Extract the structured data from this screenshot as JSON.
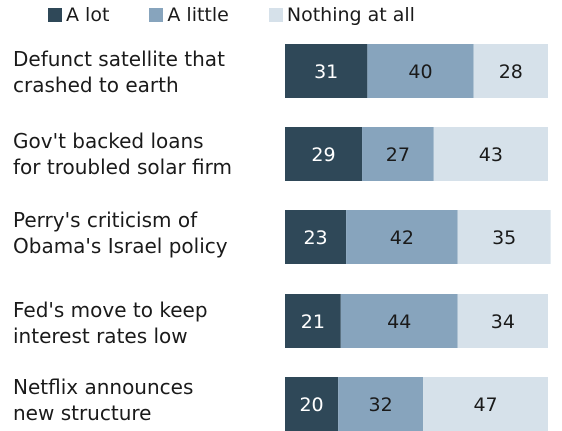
{
  "chart_data": {
    "type": "bar",
    "stacked": true,
    "orientation": "horizontal",
    "categories": [
      [
        "Defunct satellite that",
        "crashed to earth"
      ],
      [
        "Gov't backed loans",
        "for troubled solar firm"
      ],
      [
        "Perry's criticism of",
        "Obama's Israel policy"
      ],
      [
        "Fed's move to keep",
        "interest rates low"
      ],
      [
        "Netflix announces",
        "new structure"
      ]
    ],
    "series": [
      {
        "name": "A lot",
        "color": "#2f4858",
        "label_color": "#ffffff",
        "values": [
          31,
          29,
          23,
          21,
          20
        ]
      },
      {
        "name": "A little",
        "color": "#87a4bd",
        "label_color": "#1a1a1a",
        "values": [
          40,
          27,
          42,
          44,
          32
        ]
      },
      {
        "name": "Nothing at all",
        "color": "#d6e1ea",
        "label_color": "#1a1a1a",
        "values": [
          28,
          43,
          35,
          34,
          47
        ]
      }
    ],
    "xlim": [
      0,
      99
    ],
    "legend_position": "top",
    "grid": false
  }
}
